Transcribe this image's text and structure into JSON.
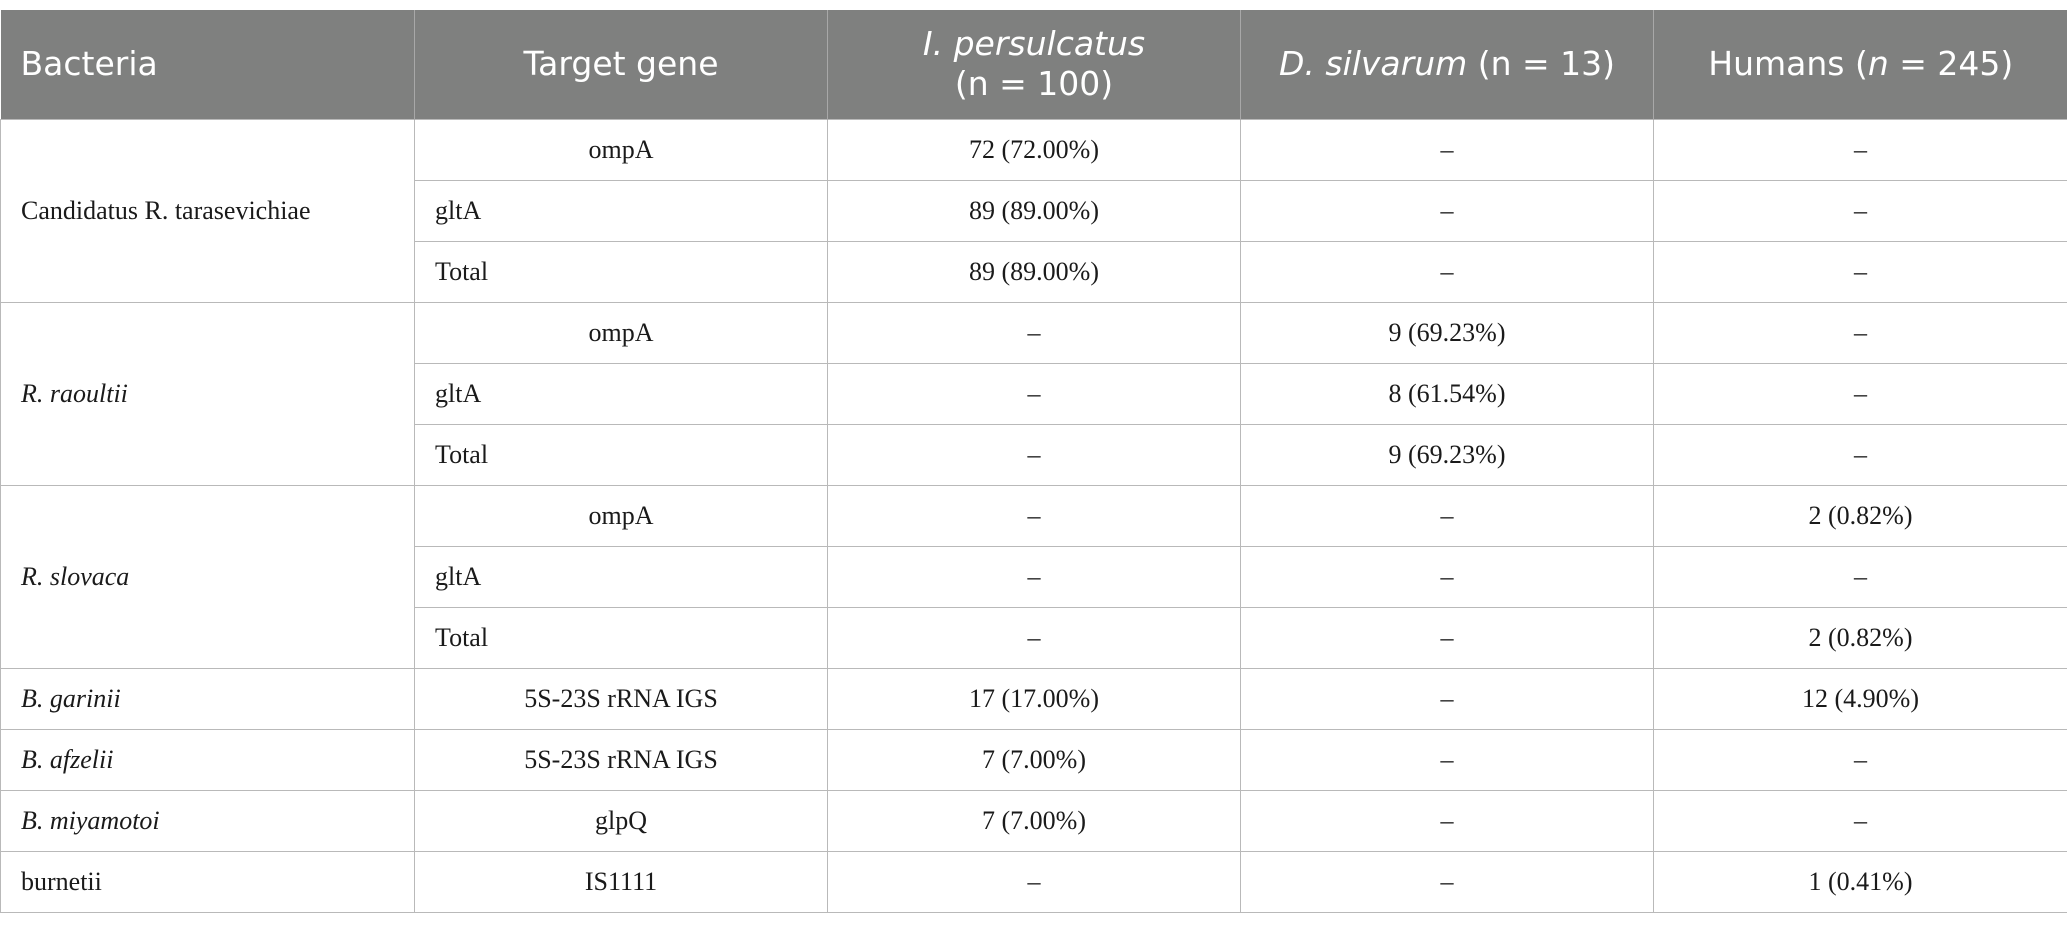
{
  "header": {
    "col0": "Bacteria",
    "col1": "Target gene",
    "col2_italic": "I. persulcatus",
    "col2_rest": "(n = 100)",
    "col3_italic": "D. silvarum",
    "col3_rest": " (n = 13)",
    "col4_pre": "Humans (",
    "col4_italic": "n",
    "col4_post": " = 245)"
  },
  "groups": {
    "tarasevichiae": {
      "name": "Candidatus R. tarasevichiae",
      "rows": [
        {
          "gene": "ompA",
          "ip": "72 (72.00%)",
          "ds": "–",
          "hu": "–"
        },
        {
          "gene": "gltA",
          "ip": "89 (89.00%)",
          "ds": "–",
          "hu": "–"
        },
        {
          "gene": "Total",
          "ip": "89 (89.00%)",
          "ds": "–",
          "hu": "–"
        }
      ]
    },
    "raoultii": {
      "name": "R. raoultii",
      "rows": [
        {
          "gene": "ompA",
          "ip": "–",
          "ds": "9 (69.23%)",
          "hu": "–"
        },
        {
          "gene": "gltA",
          "ip": "–",
          "ds": "8 (61.54%)",
          "hu": "–"
        },
        {
          "gene": "Total",
          "ip": "–",
          "ds": "9 (69.23%)",
          "hu": "–"
        }
      ]
    },
    "slovaca": {
      "name": "R. slovaca",
      "rows": [
        {
          "gene": "ompA",
          "ip": "–",
          "ds": "–",
          "hu": "2 (0.82%)"
        },
        {
          "gene": "gltA",
          "ip": "–",
          "ds": "–",
          "hu": "–"
        },
        {
          "gene": "Total",
          "ip": "–",
          "ds": "–",
          "hu": "2 (0.82%)"
        }
      ]
    },
    "garinii": {
      "name": "B. garinii",
      "rows": [
        {
          "gene": "5S-23S rRNA IGS",
          "ip": "17 (17.00%)",
          "ds": "–",
          "hu": "12 (4.90%)"
        }
      ]
    },
    "afzelii": {
      "name": "B. afzelii",
      "rows": [
        {
          "gene": "5S-23S rRNA IGS",
          "ip": "7 (7.00%)",
          "ds": "–",
          "hu": "–"
        }
      ]
    },
    "miyamotoi": {
      "name": "B. miyamotoi",
      "rows": [
        {
          "gene": "glpQ",
          "ip": "7 (7.00%)",
          "ds": "–",
          "hu": "–"
        }
      ]
    },
    "burnetii": {
      "name": "burnetii",
      "rows": [
        {
          "gene": "IS1111",
          "ip": "–",
          "ds": "–",
          "hu": "1 (0.41%)"
        }
      ]
    }
  }
}
